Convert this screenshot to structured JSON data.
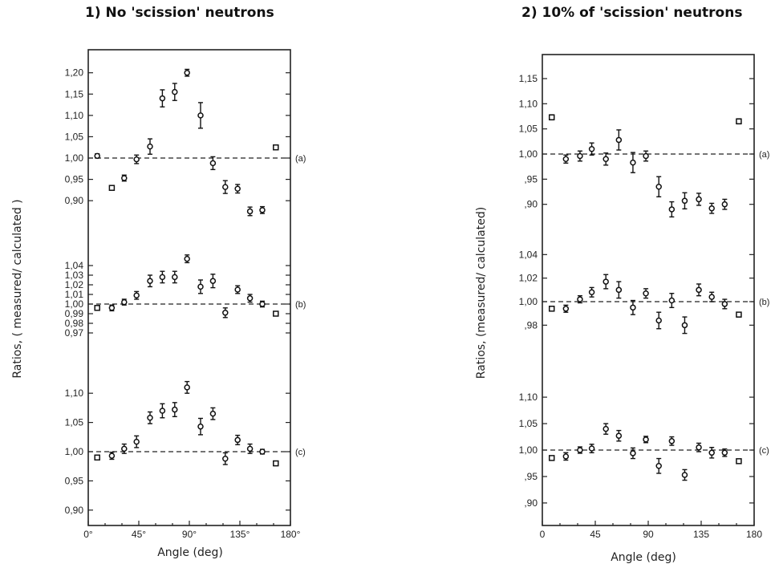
{
  "chart_data": [
    {
      "type": "scatter",
      "title": "1) No 'scission' neutrons",
      "xlabel": "Angle (deg)",
      "ylabel": "Ratios, ( measured/ calculated )",
      "xlim": [
        0,
        180
      ],
      "x_ticks": [
        0,
        45,
        90,
        135,
        180
      ],
      "x_tick_labels": [
        "0°",
        "45°",
        "90°",
        "135°",
        "180°"
      ],
      "series": [
        {
          "name": "(a)",
          "ylim": [
            0.86,
            1.225
          ],
          "reference": 1.0,
          "y_ticks": [
            0.9,
            0.95,
            1.0,
            1.05,
            1.1,
            1.15,
            1.2
          ],
          "y_tick_labels": [
            "0,90",
            "0,95",
            "1,00",
            "1,05",
            "1,10",
            "1,15",
            "1,20"
          ],
          "points": [
            {
              "x": 8,
              "y": 1.005,
              "err": 0.005,
              "marker": "circle"
            },
            {
              "x": 21,
              "y": 0.93,
              "err": 0.005,
              "marker": "square"
            },
            {
              "x": 32,
              "y": 0.953,
              "err": 0.007,
              "marker": "circle"
            },
            {
              "x": 43,
              "y": 0.997,
              "err": 0.01,
              "marker": "circle"
            },
            {
              "x": 55,
              "y": 1.027,
              "err": 0.018,
              "marker": "circle"
            },
            {
              "x": 66,
              "y": 1.14,
              "err": 0.02,
              "marker": "circle"
            },
            {
              "x": 77,
              "y": 1.155,
              "err": 0.02,
              "marker": "circle"
            },
            {
              "x": 88,
              "y": 1.2,
              "err": 0.008,
              "marker": "circle"
            },
            {
              "x": 100,
              "y": 1.1,
              "err": 0.03,
              "marker": "circle"
            },
            {
              "x": 111,
              "y": 0.988,
              "err": 0.015,
              "marker": "circle"
            },
            {
              "x": 122,
              "y": 0.932,
              "err": 0.015,
              "marker": "circle"
            },
            {
              "x": 133,
              "y": 0.928,
              "err": 0.01,
              "marker": "circle"
            },
            {
              "x": 144,
              "y": 0.875,
              "err": 0.01,
              "marker": "circle"
            },
            {
              "x": 155,
              "y": 0.878,
              "err": 0.008,
              "marker": "circle"
            },
            {
              "x": 167,
              "y": 1.025,
              "err": 0.004,
              "marker": "square"
            }
          ]
        },
        {
          "name": "(b)",
          "ylim": [
            0.955,
            1.055
          ],
          "reference": 1.0,
          "y_ticks": [
            0.97,
            0.98,
            0.99,
            1.0,
            1.01,
            1.02,
            1.03,
            1.04
          ],
          "y_tick_labels": [
            "0,97",
            "0,98",
            "0,99",
            "1,00",
            "1,01",
            "1,02",
            "1,03",
            "1,04"
          ],
          "points": [
            {
              "x": 8,
              "y": 0.996,
              "err": 0.002,
              "marker": "square"
            },
            {
              "x": 21,
              "y": 0.996,
              "err": 0.003,
              "marker": "circle"
            },
            {
              "x": 32,
              "y": 1.002,
              "err": 0.003,
              "marker": "circle"
            },
            {
              "x": 43,
              "y": 1.009,
              "err": 0.004,
              "marker": "circle"
            },
            {
              "x": 55,
              "y": 1.024,
              "err": 0.006,
              "marker": "circle"
            },
            {
              "x": 66,
              "y": 1.028,
              "err": 0.006,
              "marker": "circle"
            },
            {
              "x": 77,
              "y": 1.028,
              "err": 0.006,
              "marker": "circle"
            },
            {
              "x": 88,
              "y": 1.047,
              "err": 0.004,
              "marker": "circle"
            },
            {
              "x": 100,
              "y": 1.018,
              "err": 0.007,
              "marker": "circle"
            },
            {
              "x": 111,
              "y": 1.024,
              "err": 0.007,
              "marker": "circle"
            },
            {
              "x": 122,
              "y": 0.991,
              "err": 0.005,
              "marker": "circle"
            },
            {
              "x": 133,
              "y": 1.015,
              "err": 0.004,
              "marker": "circle"
            },
            {
              "x": 144,
              "y": 1.006,
              "err": 0.004,
              "marker": "circle"
            },
            {
              "x": 155,
              "y": 1.0,
              "err": 0.003,
              "marker": "circle"
            },
            {
              "x": 167,
              "y": 0.99,
              "err": 0.002,
              "marker": "square"
            }
          ]
        },
        {
          "name": "(c)",
          "ylim": [
            0.865,
            1.13
          ],
          "reference": 1.0,
          "y_ticks": [
            0.9,
            0.95,
            1.0,
            1.05,
            1.1
          ],
          "y_tick_labels": [
            "0,90",
            "0,95",
            "1,00",
            "1,05",
            "1,10"
          ],
          "points": [
            {
              "x": 8,
              "y": 0.99,
              "err": 0.004,
              "marker": "square"
            },
            {
              "x": 21,
              "y": 0.993,
              "err": 0.006,
              "marker": "circle"
            },
            {
              "x": 32,
              "y": 1.005,
              "err": 0.008,
              "marker": "circle"
            },
            {
              "x": 43,
              "y": 1.017,
              "err": 0.01,
              "marker": "circle"
            },
            {
              "x": 55,
              "y": 1.058,
              "err": 0.01,
              "marker": "circle"
            },
            {
              "x": 66,
              "y": 1.07,
              "err": 0.012,
              "marker": "circle"
            },
            {
              "x": 77,
              "y": 1.072,
              "err": 0.012,
              "marker": "circle"
            },
            {
              "x": 88,
              "y": 1.11,
              "err": 0.01,
              "marker": "circle"
            },
            {
              "x": 100,
              "y": 1.043,
              "err": 0.014,
              "marker": "circle"
            },
            {
              "x": 111,
              "y": 1.065,
              "err": 0.01,
              "marker": "circle"
            },
            {
              "x": 122,
              "y": 0.988,
              "err": 0.01,
              "marker": "circle"
            },
            {
              "x": 133,
              "y": 1.02,
              "err": 0.008,
              "marker": "circle"
            },
            {
              "x": 144,
              "y": 1.005,
              "err": 0.008,
              "marker": "circle"
            },
            {
              "x": 155,
              "y": 1.0,
              "err": 0.004,
              "marker": "circle"
            },
            {
              "x": 167,
              "y": 0.98,
              "err": 0.004,
              "marker": "square"
            }
          ]
        }
      ]
    },
    {
      "type": "scatter",
      "title": "2) 10% of 'scission' neutrons",
      "xlabel": "Angle (deg)",
      "ylabel": "Ratios, (measured/ calculated)",
      "xlim": [
        0,
        180
      ],
      "x_ticks": [
        0,
        45,
        90,
        135,
        180
      ],
      "x_tick_labels": [
        "0",
        "45",
        "90",
        "135",
        "180"
      ],
      "series": [
        {
          "name": "(a)",
          "ylim": [
            0.86,
            1.195
          ],
          "reference": 1.0,
          "y_ticks": [
            0.9,
            0.95,
            1.0,
            1.05,
            1.1,
            1.15
          ],
          "y_tick_labels": [
            ",90",
            ",95",
            "1,00",
            "1,05",
            "1,10",
            "1,15"
          ],
          "points": [
            {
              "x": 8,
              "y": 1.073,
              "err": 0.005,
              "marker": "square"
            },
            {
              "x": 20,
              "y": 0.99,
              "err": 0.008,
              "marker": "circle"
            },
            {
              "x": 32,
              "y": 0.996,
              "err": 0.01,
              "marker": "circle"
            },
            {
              "x": 42,
              "y": 1.01,
              "err": 0.012,
              "marker": "circle"
            },
            {
              "x": 54,
              "y": 0.99,
              "err": 0.012,
              "marker": "circle"
            },
            {
              "x": 65,
              "y": 1.028,
              "err": 0.02,
              "marker": "circle"
            },
            {
              "x": 77,
              "y": 0.983,
              "err": 0.02,
              "marker": "circle"
            },
            {
              "x": 88,
              "y": 0.996,
              "err": 0.01,
              "marker": "circle"
            },
            {
              "x": 99,
              "y": 0.935,
              "err": 0.02,
              "marker": "circle"
            },
            {
              "x": 110,
              "y": 0.89,
              "err": 0.015,
              "marker": "circle"
            },
            {
              "x": 121,
              "y": 0.907,
              "err": 0.016,
              "marker": "circle"
            },
            {
              "x": 133,
              "y": 0.91,
              "err": 0.012,
              "marker": "circle"
            },
            {
              "x": 144,
              "y": 0.892,
              "err": 0.01,
              "marker": "circle"
            },
            {
              "x": 155,
              "y": 0.9,
              "err": 0.01,
              "marker": "circle"
            },
            {
              "x": 167,
              "y": 1.065,
              "err": 0.005,
              "marker": "square"
            }
          ]
        },
        {
          "name": "(b)",
          "ylim": [
            0.955,
            1.045
          ],
          "reference": 1.0,
          "y_ticks": [
            0.98,
            1.0,
            1.02,
            1.04
          ],
          "y_tick_labels": [
            ",98",
            "1,00",
            "1,02",
            "1,04"
          ],
          "points": [
            {
              "x": 8,
              "y": 0.994,
              "err": 0.002,
              "marker": "square"
            },
            {
              "x": 20,
              "y": 0.994,
              "err": 0.003,
              "marker": "circle"
            },
            {
              "x": 32,
              "y": 1.002,
              "err": 0.003,
              "marker": "circle"
            },
            {
              "x": 42,
              "y": 1.008,
              "err": 0.004,
              "marker": "circle"
            },
            {
              "x": 54,
              "y": 1.017,
              "err": 0.006,
              "marker": "circle"
            },
            {
              "x": 65,
              "y": 1.01,
              "err": 0.007,
              "marker": "circle"
            },
            {
              "x": 77,
              "y": 0.995,
              "err": 0.006,
              "marker": "circle"
            },
            {
              "x": 88,
              "y": 1.007,
              "err": 0.004,
              "marker": "circle"
            },
            {
              "x": 99,
              "y": 0.984,
              "err": 0.007,
              "marker": "circle"
            },
            {
              "x": 110,
              "y": 1.001,
              "err": 0.006,
              "marker": "circle"
            },
            {
              "x": 121,
              "y": 0.98,
              "err": 0.007,
              "marker": "circle"
            },
            {
              "x": 133,
              "y": 1.01,
              "err": 0.005,
              "marker": "circle"
            },
            {
              "x": 144,
              "y": 1.004,
              "err": 0.004,
              "marker": "circle"
            },
            {
              "x": 155,
              "y": 0.998,
              "err": 0.004,
              "marker": "circle"
            },
            {
              "x": 167,
              "y": 0.989,
              "err": 0.002,
              "marker": "square"
            }
          ]
        },
        {
          "name": "(c)",
          "ylim": [
            0.86,
            1.13
          ],
          "reference": 1.0,
          "y_ticks": [
            0.9,
            0.95,
            1.0,
            1.05,
            1.1
          ],
          "y_tick_labels": [
            ",90",
            ",95",
            "1,00",
            "1,05",
            "1,10"
          ],
          "points": [
            {
              "x": 8,
              "y": 0.985,
              "err": 0.004,
              "marker": "square"
            },
            {
              "x": 20,
              "y": 0.988,
              "err": 0.007,
              "marker": "circle"
            },
            {
              "x": 32,
              "y": 1.0,
              "err": 0.006,
              "marker": "circle"
            },
            {
              "x": 42,
              "y": 1.003,
              "err": 0.008,
              "marker": "circle"
            },
            {
              "x": 54,
              "y": 1.04,
              "err": 0.01,
              "marker": "circle"
            },
            {
              "x": 65,
              "y": 1.027,
              "err": 0.01,
              "marker": "circle"
            },
            {
              "x": 77,
              "y": 0.994,
              "err": 0.01,
              "marker": "circle"
            },
            {
              "x": 88,
              "y": 1.02,
              "err": 0.006,
              "marker": "circle"
            },
            {
              "x": 99,
              "y": 0.97,
              "err": 0.014,
              "marker": "circle"
            },
            {
              "x": 110,
              "y": 1.017,
              "err": 0.008,
              "marker": "circle"
            },
            {
              "x": 121,
              "y": 0.953,
              "err": 0.01,
              "marker": "circle"
            },
            {
              "x": 133,
              "y": 1.005,
              "err": 0.008,
              "marker": "circle"
            },
            {
              "x": 144,
              "y": 0.995,
              "err": 0.01,
              "marker": "circle"
            },
            {
              "x": 155,
              "y": 0.995,
              "err": 0.007,
              "marker": "circle"
            },
            {
              "x": 167,
              "y": 0.979,
              "err": 0.003,
              "marker": "square"
            }
          ]
        }
      ]
    }
  ]
}
